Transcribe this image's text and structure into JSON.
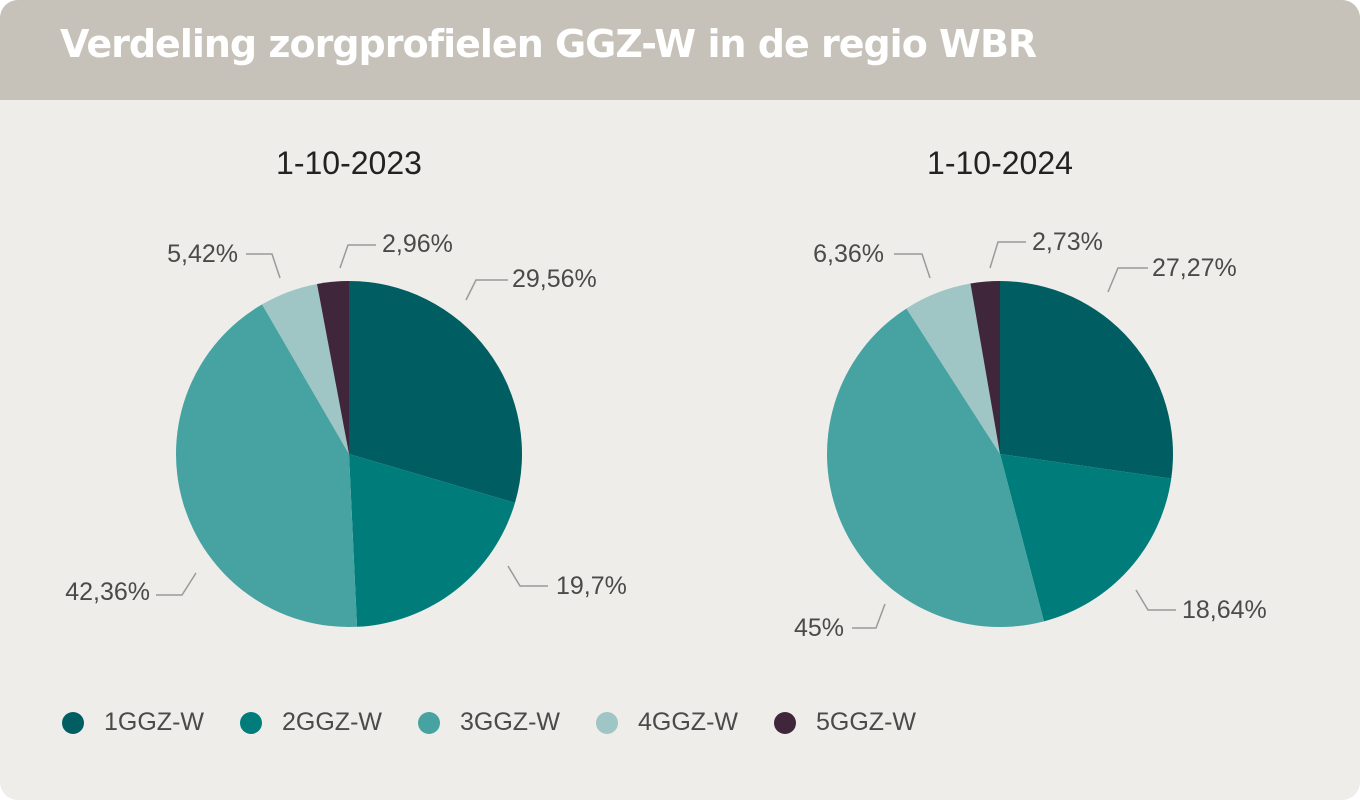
{
  "header": {
    "title": "Verdeling zorgprofielen GGZ-W in de regio WBR"
  },
  "chart_data": [
    {
      "type": "pie",
      "title": "1-10-2023",
      "categories": [
        "1GGZ-W",
        "2GGZ-W",
        "3GGZ-W",
        "4GGZ-W",
        "5GGZ-W"
      ],
      "values": [
        29.56,
        19.7,
        42.36,
        5.42,
        2.96
      ],
      "data_labels": [
        "29,56%",
        "19,7%",
        "42,36%",
        "5,42%",
        "2,96%"
      ]
    },
    {
      "type": "pie",
      "title": "1-10-2024",
      "categories": [
        "1GGZ-W",
        "2GGZ-W",
        "3GGZ-W",
        "4GGZ-W",
        "5GGZ-W"
      ],
      "values": [
        27.27,
        18.64,
        45,
        6.36,
        2.73
      ],
      "data_labels": [
        "27,27%",
        "18,64%",
        "45%",
        "6,36%",
        "2,73%"
      ]
    }
  ],
  "legend": {
    "items": [
      {
        "label": "1GGZ-W",
        "color": "#005e62"
      },
      {
        "label": "2GGZ-W",
        "color": "#007d7a"
      },
      {
        "label": "3GGZ-W",
        "color": "#46a3a2"
      },
      {
        "label": "4GGZ-W",
        "color": "#9fc5c5"
      },
      {
        "label": "5GGZ-W",
        "color": "#40263a"
      }
    ]
  },
  "colors": {
    "header_bg": "#c6c1b9",
    "panel_bg": "#eeede9",
    "leader_line": "#9a9a9a",
    "text": "#4a4a4a"
  }
}
